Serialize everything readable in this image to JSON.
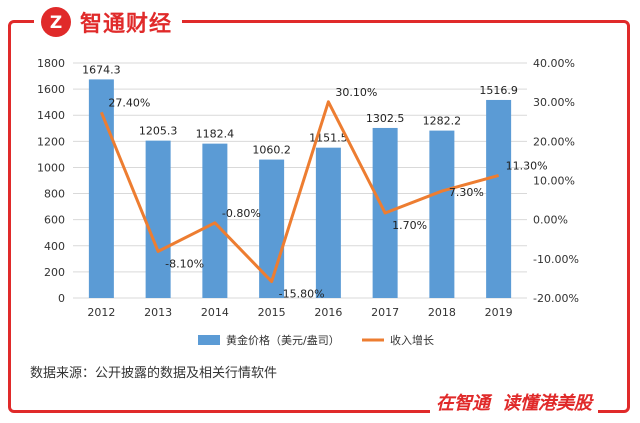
{
  "brand": {
    "name": "智通财经",
    "logo_mark": "Z"
  },
  "source": "数据来源：公开披露的数据及相关行情软件",
  "footer": {
    "part1": "在智通",
    "part2": "读懂港美股"
  },
  "colors": {
    "bar": "#5b9bd5",
    "line": "#ed7d31",
    "accent": "#e02a2a",
    "grid": "#d9d9d9"
  },
  "chart_data": {
    "type": "bar+line",
    "categories": [
      "2012",
      "2013",
      "2014",
      "2015",
      "2016",
      "2017",
      "2018",
      "2019"
    ],
    "series": [
      {
        "name": "黄金价格（美元/盎司）",
        "type": "bar",
        "axis": "left",
        "values": [
          1674.3,
          1205.3,
          1182.4,
          1060.2,
          1151.5,
          1302.5,
          1282.2,
          1516.9
        ],
        "labels": [
          "1674.3",
          "1205.3",
          "1182.4",
          "1060.2",
          "1151.5",
          "1302.5",
          "1282.2",
          "1516.9"
        ]
      },
      {
        "name": "收入增长",
        "type": "line",
        "axis": "right",
        "values": [
          27.4,
          -8.1,
          -0.8,
          -15.8,
          30.1,
          1.7,
          7.3,
          11.3
        ],
        "labels": [
          "27.40%",
          "-8.10%",
          "-0.80%",
          "-15.80%",
          "30.10%",
          "1.70%",
          "7.30%",
          "11.30%"
        ]
      }
    ],
    "left_axis": {
      "range": [
        0,
        1800
      ],
      "ticks": [
        0,
        200,
        400,
        600,
        800,
        1000,
        1200,
        1400,
        1600,
        1800
      ],
      "tick_labels": [
        "0",
        "200",
        "400",
        "600",
        "800",
        "1000",
        "1200",
        "1400",
        "1600",
        "1800"
      ]
    },
    "right_axis": {
      "range": [
        -20,
        40
      ],
      "ticks": [
        -20,
        -10,
        0,
        10,
        20,
        30,
        40
      ],
      "tick_labels": [
        "-20.00%",
        "-10.00%",
        "0.00%",
        "10.00%",
        "20.00%",
        "30.00%",
        "40.00%"
      ]
    },
    "grid": true,
    "legend_position": "bottom"
  }
}
